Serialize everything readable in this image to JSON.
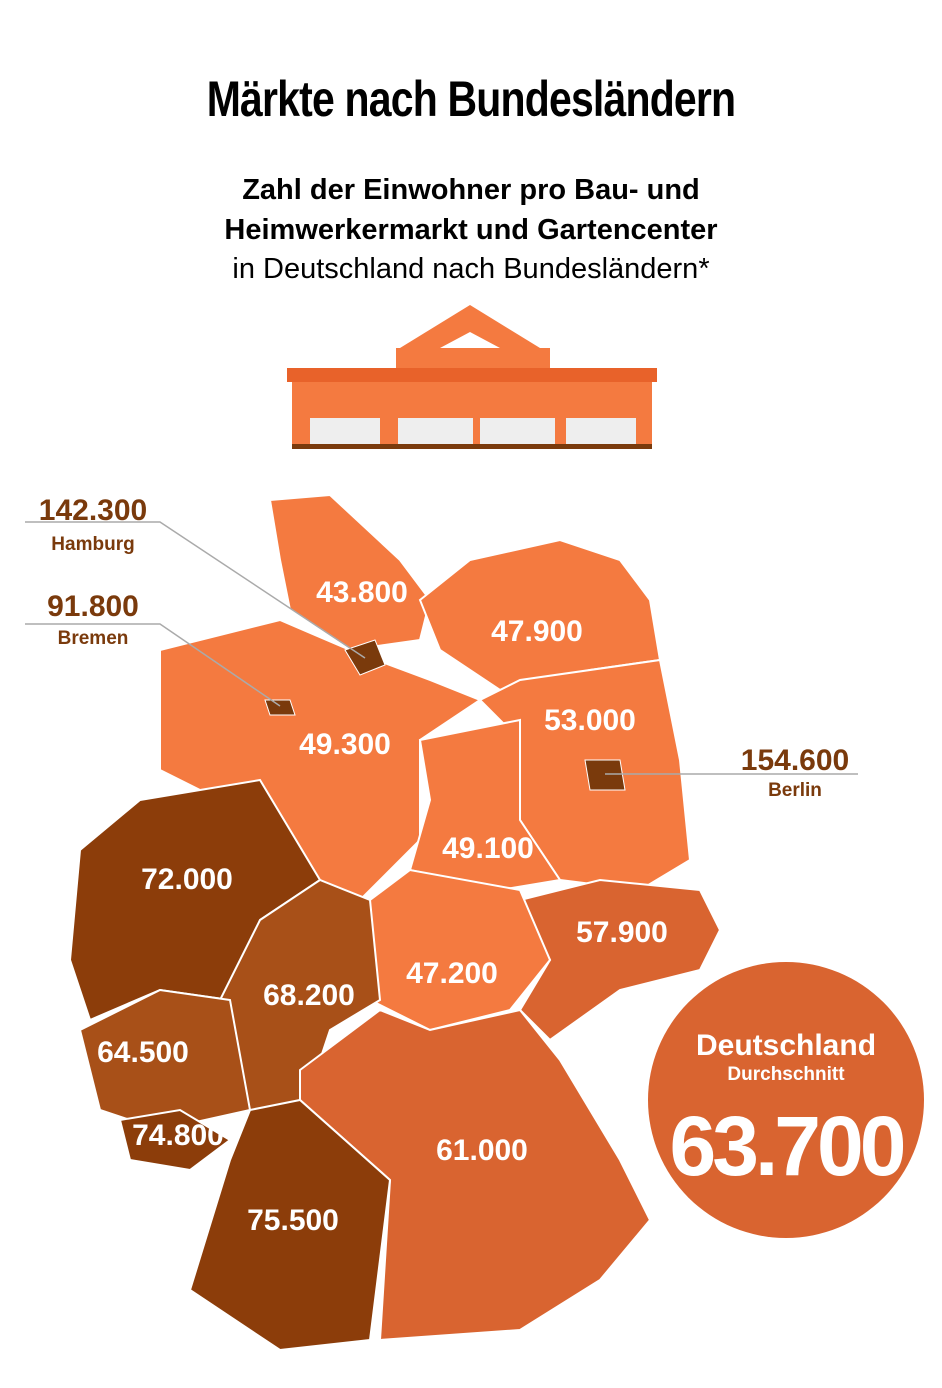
{
  "title": "Märkte nach Bundesländern",
  "subtitle": {
    "bold": "Zahl der Einwohner pro Bau- und Heimwerkermarkt und Gartencenter",
    "normal": "in Deutschland nach Bundesländern*"
  },
  "regions": [
    {
      "value": "43.800"
    },
    {
      "value": "47.900"
    },
    {
      "value": "49.300"
    },
    {
      "value": "53.000"
    },
    {
      "value": "49.100"
    },
    {
      "value": "72.000"
    },
    {
      "value": "57.900"
    },
    {
      "value": "47.200"
    },
    {
      "value": "68.200"
    },
    {
      "value": "64.500"
    },
    {
      "value": "74.800"
    },
    {
      "value": "61.000"
    },
    {
      "value": "75.500"
    }
  ],
  "callouts": [
    {
      "value": "142.300",
      "label": "Hamburg"
    },
    {
      "value": "91.800",
      "label": "Bremen"
    },
    {
      "value": "154.600",
      "label": "Berlin"
    }
  ],
  "average": {
    "title": "Deutschland",
    "subtitle": "Durchschnitt",
    "value": "63.700"
  }
}
